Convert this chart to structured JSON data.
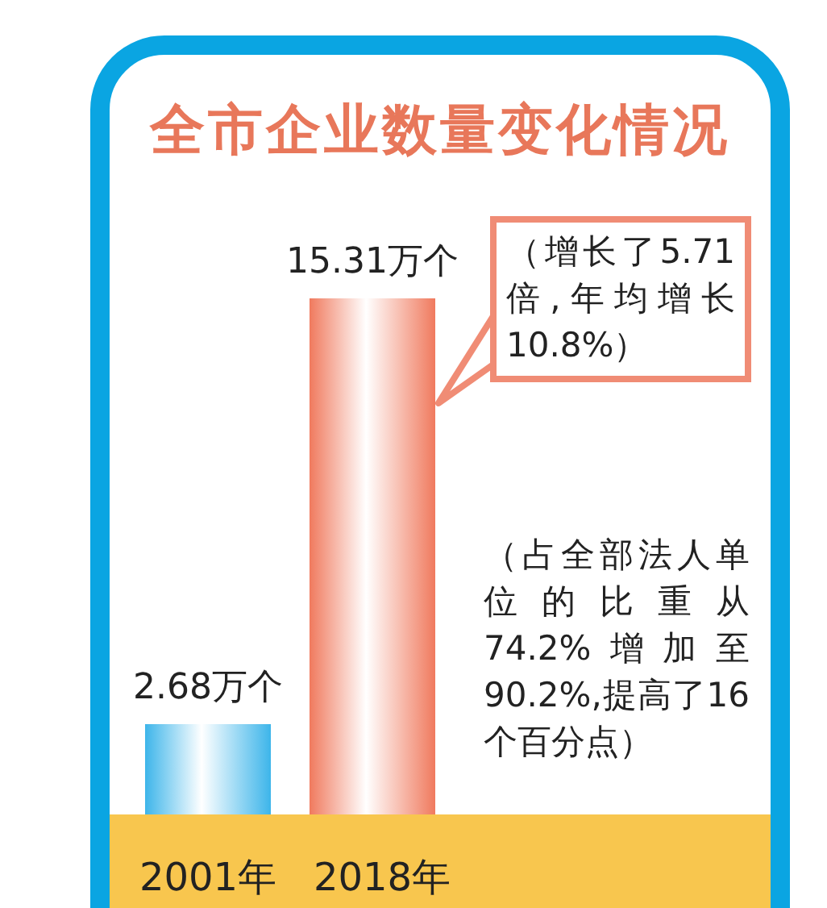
{
  "chart_data": {
    "type": "bar",
    "title": "全市企业数量变化情况",
    "categories": [
      "2001年",
      "2018年"
    ],
    "values": [
      2.68,
      15.31
    ],
    "colors": [
      "#3db5ea",
      "#f07a5e"
    ],
    "value_labels": [
      "2.68万个",
      "15.31万个"
    ],
    "relative": false,
    "annotations": [
      "（增长了5.71倍,年均增长10.8%）",
      "（占全部法人单位的比重从74.2%增加至90.2%,提高了16个百分点）"
    ]
  }
}
